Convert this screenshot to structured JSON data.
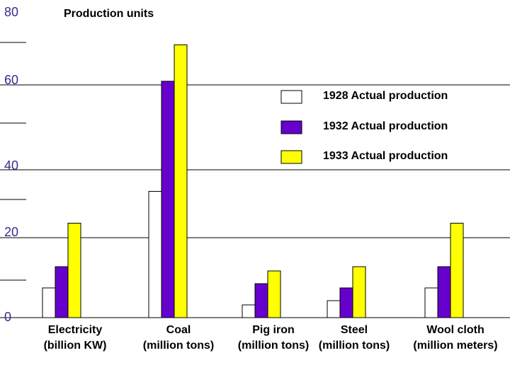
{
  "chart_data": {
    "type": "bar",
    "title": "Production units",
    "ylim": [
      0,
      80
    ],
    "y_ticks": [
      "0",
      "20",
      "40",
      "60",
      "80"
    ],
    "categories": [
      {
        "name": "Electricity",
        "unit": "(billion KW)"
      },
      {
        "name": "Coal",
        "unit": "(million tons)"
      },
      {
        "name": "Pig iron",
        "unit": "(million tons)"
      },
      {
        "name": "Steel",
        "unit": "(million tons)"
      },
      {
        "name": "Wool cloth",
        "unit": "(million meters)"
      }
    ],
    "series": [
      {
        "name": "1928 Actual production",
        "color": "#ffffff",
        "values": [
          7,
          33,
          3,
          4,
          7
        ]
      },
      {
        "name": "1932 Actual production",
        "color": "#6600cc",
        "values": [
          12,
          61,
          8,
          7,
          12
        ]
      },
      {
        "name": "1933 Actual production",
        "color": "#ffff00",
        "values": [
          23,
          71,
          11,
          12,
          23
        ]
      }
    ],
    "legend_position": "right"
  }
}
